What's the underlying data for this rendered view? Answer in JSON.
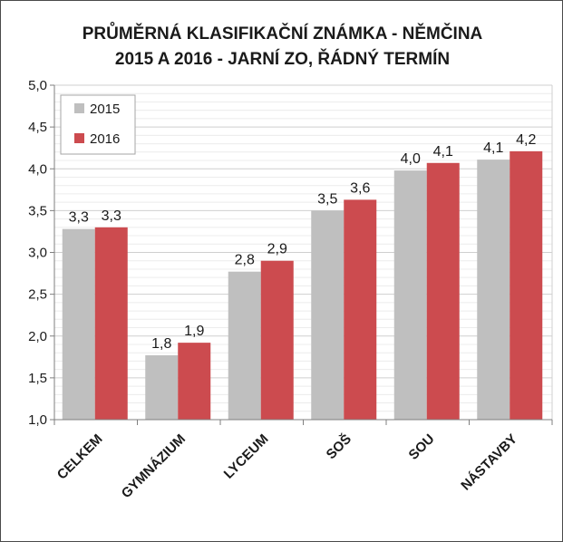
{
  "chart_data": {
    "type": "bar",
    "title": "PRŮMĚRNÁ KLASIFIKAČNÍ ZNÁMKA - NĚMČINA",
    "subtitle": "2015 A 2016 - JARNÍ ZO, ŘÁDNÝ TERMÍN",
    "categories": [
      "CELKEM",
      "GYMNÁZIUM",
      "LYCEUM",
      "SOŠ",
      "SOU",
      "NÁSTAVBY"
    ],
    "series": [
      {
        "name": "2015",
        "color": "#bfbfbf",
        "values": [
          3.28,
          1.77,
          2.77,
          3.5,
          3.98,
          4.11
        ],
        "labels": [
          "3,3",
          "1,8",
          "2,8",
          "3,5",
          "4,0",
          "4,1"
        ]
      },
      {
        "name": "2016",
        "color": "#cc4b4f",
        "values": [
          3.3,
          1.92,
          2.9,
          3.63,
          4.07,
          4.21
        ],
        "labels": [
          "3,3",
          "1,9",
          "2,9",
          "3,6",
          "4,1",
          "4,2"
        ]
      }
    ],
    "ylim": [
      1.0,
      5.0
    ],
    "yticks": [
      "1,0",
      "1,5",
      "2,0",
      "2,5",
      "3,0",
      "3,5",
      "4,0",
      "4,5",
      "5,0"
    ],
    "ytick_values": [
      1.0,
      1.5,
      2.0,
      2.5,
      3.0,
      3.5,
      4.0,
      4.5,
      5.0
    ],
    "grid": true,
    "legend_position": "top-left",
    "xlabel": "",
    "ylabel": ""
  }
}
